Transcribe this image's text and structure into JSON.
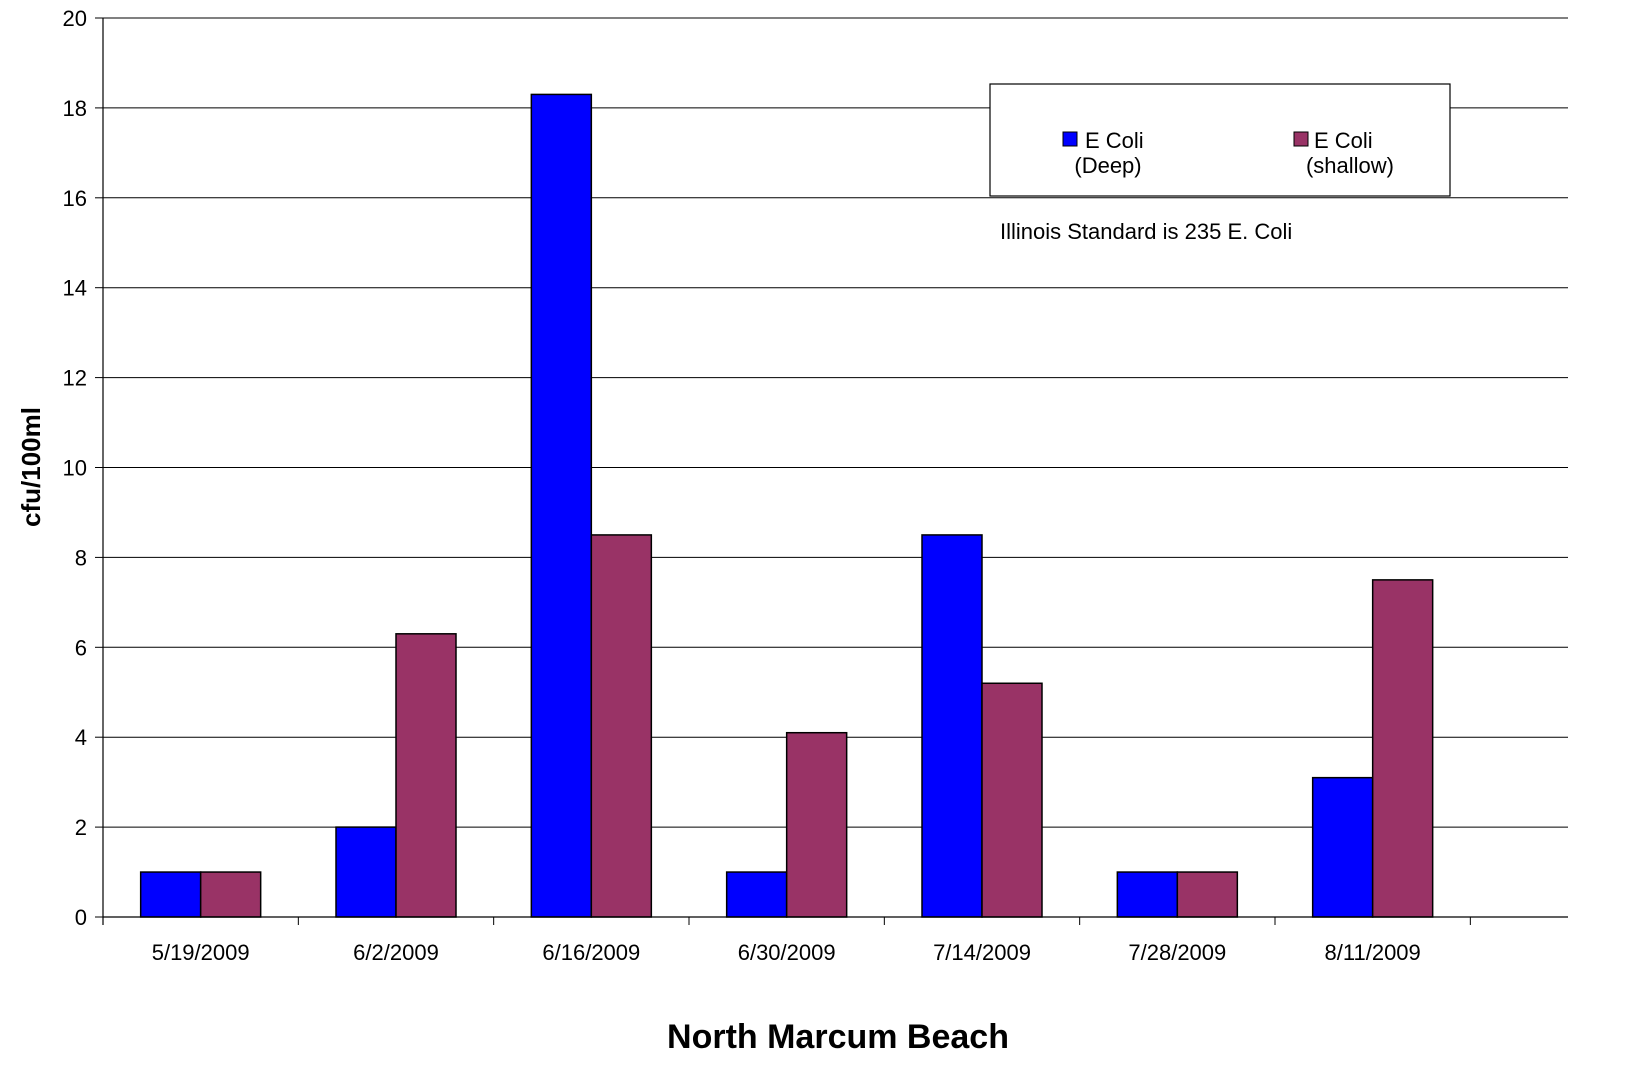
{
  "chart_data": {
    "type": "bar",
    "title": "",
    "xlabel": "North Marcum Beach",
    "ylabel": "cfu/100ml",
    "categories": [
      "5/19/2009",
      "6/2/2009",
      "6/16/2009",
      "6/30/2009",
      "7/14/2009",
      "7/28/2009",
      "8/11/2009"
    ],
    "series": [
      {
        "name": "E Coli (Deep)",
        "color": "#0000ff",
        "values": [
          1,
          2,
          18.3,
          1,
          8.5,
          1,
          3.1
        ]
      },
      {
        "name": "E Coli (shallow)",
        "color": "#993366",
        "values": [
          1,
          6.3,
          8.5,
          4.1,
          5.2,
          1,
          7.5
        ]
      }
    ],
    "legend": {
      "placement": "top-right",
      "items": [
        {
          "line1": "E Coli",
          "line2": "(Deep)",
          "color": "#0000ff"
        },
        {
          "line1": "E Coli",
          "line2": "(shallow)",
          "color": "#993366"
        }
      ]
    },
    "annotation": "Illinois Standard is 235 E. Coli",
    "ylim": [
      0,
      20
    ],
    "yticks": [
      0,
      2,
      4,
      6,
      8,
      10,
      12,
      14,
      16,
      18,
      20
    ],
    "grid": true
  }
}
